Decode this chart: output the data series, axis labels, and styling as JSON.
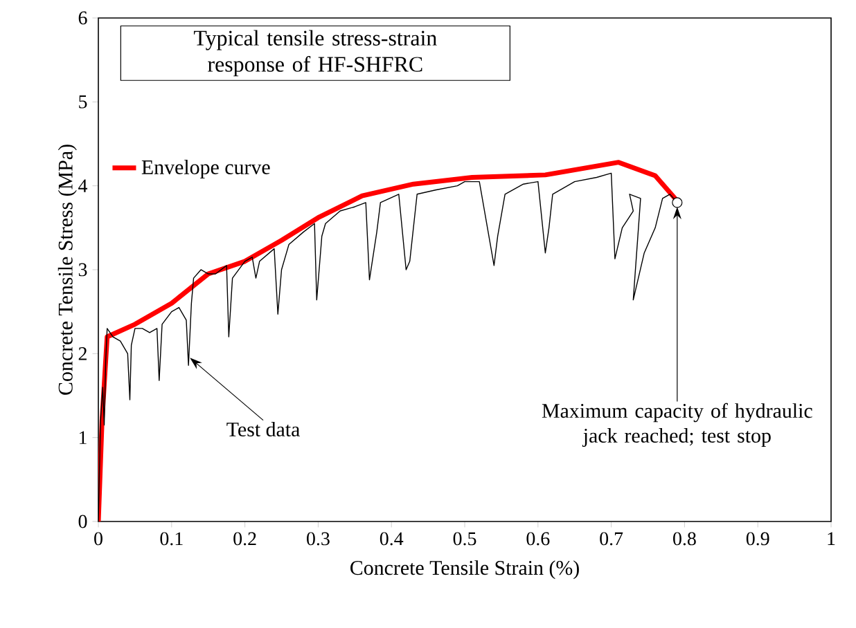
{
  "chart_data": {
    "type": "line",
    "title": "Typical tensile stress-strain response of HF-SHFRC",
    "xlabel": "Concrete Tensile Strain (%)",
    "ylabel": "Concrete Tensile Stress (MPa)",
    "xlim": [
      0,
      1
    ],
    "ylim": [
      0,
      6
    ],
    "xticks": [
      0,
      0.1,
      0.2,
      0.3,
      0.4,
      0.5,
      0.6,
      0.7,
      0.8,
      0.9,
      1
    ],
    "yticks": [
      0,
      1,
      2,
      3,
      4,
      5,
      6
    ],
    "legend": "top left",
    "series": [
      {
        "color": "#000000",
        "marker": "none",
        "x": [
          0,
          0.003,
          0.006,
          0.008,
          0.01,
          0.012,
          0.02,
          0.03,
          0.04,
          0.043,
          0.045,
          0.05,
          0.06,
          0.07,
          0.08,
          0.083,
          0.087,
          0.1,
          0.11,
          0.12,
          0.123,
          0.127,
          0.13,
          0.14,
          0.15,
          0.16,
          0.175,
          0.178,
          0.183,
          0.2,
          0.21,
          0.215,
          0.22,
          0.24,
          0.245,
          0.25,
          0.26,
          0.28,
          0.295,
          0.298,
          0.305,
          0.31,
          0.33,
          0.35,
          0.365,
          0.37,
          0.38,
          0.385,
          0.41,
          0.42,
          0.425,
          0.43,
          0.435,
          0.46,
          0.49,
          0.5,
          0.52,
          0.54,
          0.545,
          0.555,
          0.58,
          0.6,
          0.61,
          0.615,
          0.62,
          0.65,
          0.68,
          0.7,
          0.705,
          0.715,
          0.73,
          0.725,
          0.74,
          0.73,
          0.745,
          0.76,
          0.77,
          0.78,
          0.79
        ],
        "values": [
          0,
          1.2,
          1.6,
          1.15,
          1.9,
          2.3,
          2.2,
          2.15,
          2.0,
          1.45,
          2.1,
          2.3,
          2.3,
          2.25,
          2.3,
          1.68,
          2.35,
          2.5,
          2.55,
          2.4,
          1.86,
          2.6,
          2.9,
          3.0,
          2.95,
          2.95,
          3.05,
          2.2,
          2.9,
          3.1,
          3.15,
          2.9,
          3.1,
          3.25,
          2.47,
          3.0,
          3.3,
          3.45,
          3.55,
          2.64,
          3.4,
          3.55,
          3.7,
          3.75,
          3.8,
          2.88,
          3.45,
          3.8,
          3.9,
          3.0,
          3.1,
          3.5,
          3.9,
          3.95,
          4.0,
          4.05,
          4.05,
          3.05,
          3.4,
          3.9,
          4.02,
          4.05,
          3.2,
          3.5,
          3.9,
          4.05,
          4.1,
          4.15,
          3.13,
          3.5,
          3.7,
          3.9,
          3.85,
          2.64,
          3.2,
          3.5,
          3.85,
          3.9,
          3.8
        ]
      },
      {
        "name": "Envelope curve",
        "color": "#ff0000",
        "marker": "none",
        "x": [
          0,
          0.005,
          0.012,
          0.05,
          0.1,
          0.15,
          0.2,
          0.25,
          0.3,
          0.36,
          0.43,
          0.51,
          0.61,
          0.71,
          0.76,
          0.79
        ],
        "values": [
          0,
          1.2,
          2.2,
          2.35,
          2.6,
          2.95,
          3.1,
          3.35,
          3.62,
          3.88,
          4.02,
          4.1,
          4.13,
          4.28,
          4.12,
          3.82
        ]
      },
      {
        "type": "scatter",
        "color": "#ffffff",
        "marker": "circle",
        "x": [
          0.79
        ],
        "values": [
          3.8
        ]
      }
    ],
    "annotations": [
      {
        "text": "Test data",
        "x": 0.125,
        "y": 1.95
      },
      {
        "text": "Maximum capacity of hydraulic jack reached; test stop",
        "x": 0.79,
        "y": 3.75
      }
    ]
  }
}
